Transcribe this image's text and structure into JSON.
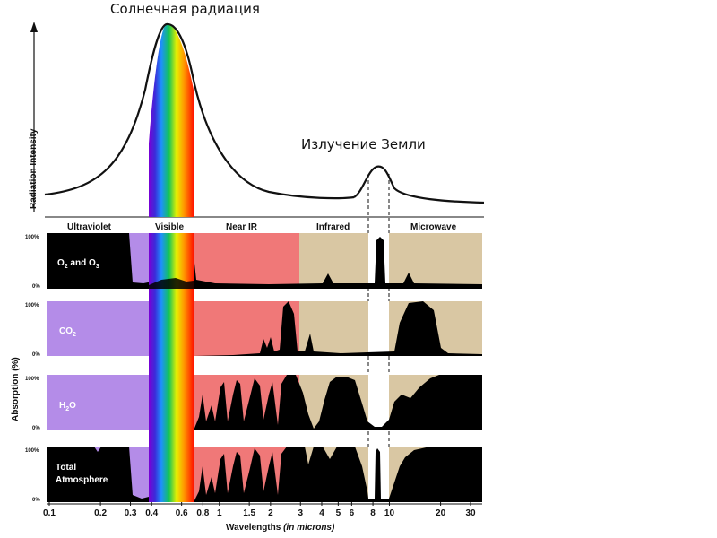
{
  "titles": {
    "solar": "Солнечная радиация",
    "earth": "Излучение Земли"
  },
  "axes": {
    "y_top": "Radiation Intensity",
    "y_bottom": "Absorption (%)",
    "x_label": "Wavelengths",
    "x_unit": "(in microns)"
  },
  "bands": [
    "Ultraviolet",
    "Visible",
    "Near IR",
    "Infrared",
    "Microwave"
  ],
  "percent_labels": {
    "top": "100%",
    "bottom": "0%"
  },
  "panels": [
    {
      "id": "o2o3",
      "label": "O",
      "sub1": "2",
      "mid": " and O",
      "sub2": "3"
    },
    {
      "id": "co2",
      "label": "CO",
      "sub1": "2",
      "mid": "",
      "sub2": ""
    },
    {
      "id": "h2o",
      "label": "H",
      "sub1": "2",
      "mid": "O",
      "sub2": ""
    },
    {
      "id": "total",
      "label": "Total",
      "line2": "Atmosphere"
    }
  ],
  "x_ticks": [
    "0.1",
    "0.2",
    "0.3",
    "0.4",
    "0.6",
    "0.8",
    "1",
    "1.5",
    "2",
    "3",
    "4",
    "5",
    "6",
    "8",
    "10",
    "20",
    "30"
  ],
  "colors": {
    "uv": "#b48ce8",
    "near_ir": "#f07878",
    "infrared": "#d9c7a3",
    "absorption": "#000000",
    "curve": "#111111"
  },
  "chart_data": {
    "type": "area",
    "x_scale": "log",
    "x_range": [
      0.1,
      35
    ],
    "panels": [
      "O2 and O3",
      "CO2",
      "H2O",
      "Total Atmosphere"
    ],
    "notes": "Absorption spectra (0–100%) by wavelength; solar radiation peaks in visible, Earth radiation peaks near 10 microns"
  }
}
